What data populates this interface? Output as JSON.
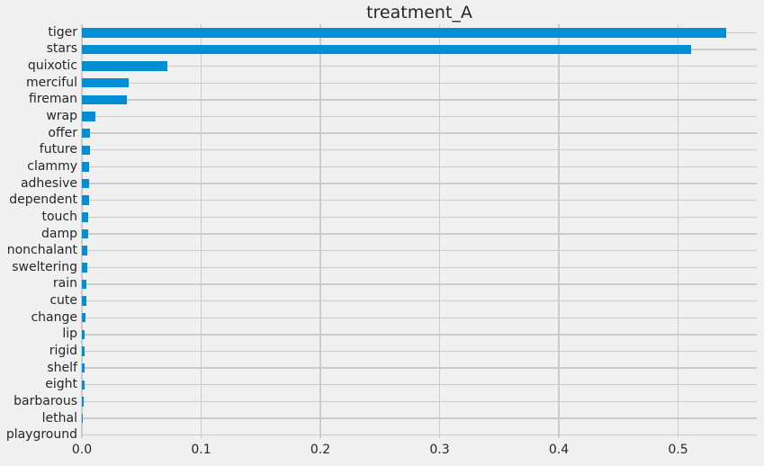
{
  "chart_data": {
    "type": "bar",
    "orientation": "horizontal",
    "title": "treatment_A",
    "xlabel": "",
    "ylabel": "",
    "categories": [
      "tiger",
      "stars",
      "quixotic",
      "merciful",
      "fireman",
      "wrap",
      "offer",
      "future",
      "clammy",
      "adhesive",
      "dependent",
      "touch",
      "damp",
      "nonchalant",
      "sweltering",
      "rain",
      "cute",
      "change",
      "lip",
      "rigid",
      "shelf",
      "eight",
      "barbarous",
      "lethal",
      "playground"
    ],
    "values": [
      0.54,
      0.511,
      0.072,
      0.039,
      0.038,
      0.011,
      0.0068,
      0.0066,
      0.0061,
      0.0059,
      0.0057,
      0.0054,
      0.0052,
      0.0049,
      0.0047,
      0.0041,
      0.0036,
      0.0031,
      0.0025,
      0.0022,
      0.0021,
      0.0019,
      0.0014,
      0.0008,
      0.0
    ],
    "xtick_labels": [
      "0.0",
      "0.1",
      "0.2",
      "0.3",
      "0.4",
      "0.5"
    ],
    "xtick_values": [
      0.0,
      0.1,
      0.2,
      0.3,
      0.4,
      0.5
    ],
    "xlim": [
      0.0,
      0.566
    ],
    "grid": true,
    "legend_position": "none",
    "colors": {
      "bar": "#008fd5",
      "background": "#f0f0f0",
      "grid": "#cbcbcb",
      "text": "#262626"
    }
  }
}
